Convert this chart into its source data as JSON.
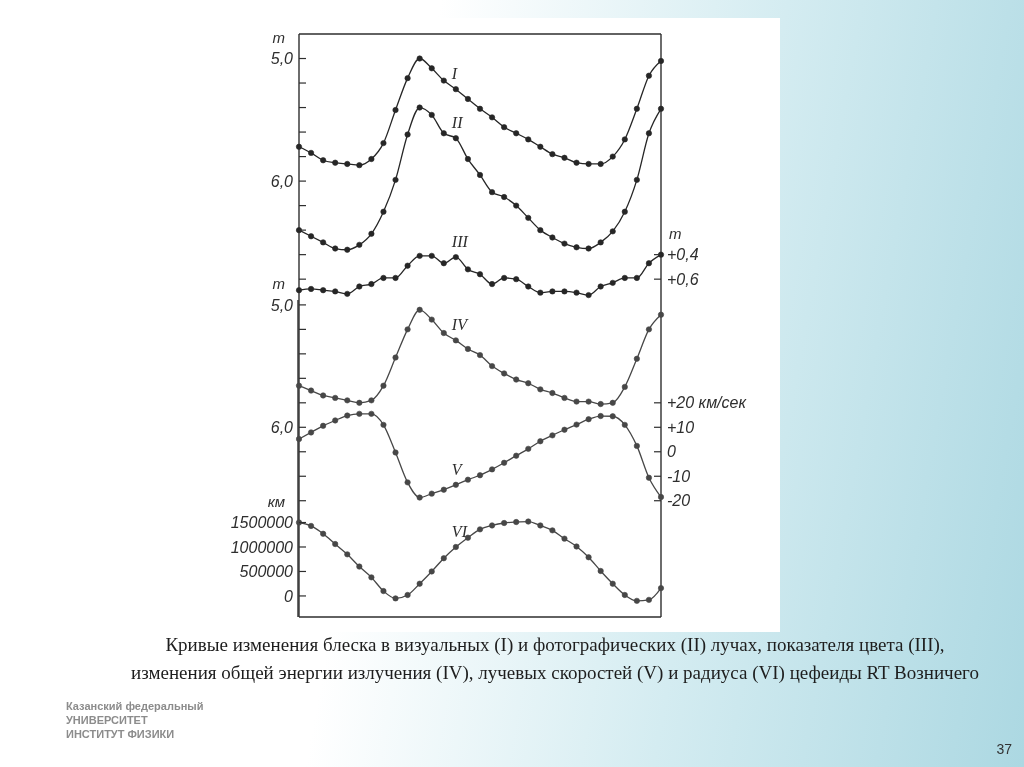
{
  "chart_data": [
    {
      "type": "line",
      "categories": [
        null,
        null,
        null,
        null,
        null,
        null,
        null,
        null,
        null,
        null,
        null,
        null,
        null,
        null,
        null,
        null,
        null,
        null,
        null,
        null,
        null,
        null,
        null,
        null,
        null,
        null,
        null,
        null,
        null,
        null,
        null
      ],
      "series": [
        {
          "name": "I",
          "color": "#262626",
          "values": [
            5.72,
            5.77,
            5.83,
            5.85,
            5.86,
            5.87,
            5.82,
            5.69,
            5.42,
            5.16,
            5.0,
            5.08,
            5.18,
            5.25,
            5.33,
            5.41,
            5.48,
            5.56,
            5.61,
            5.66,
            5.72,
            5.78,
            5.81,
            5.85,
            5.86,
            5.86,
            5.8,
            5.66,
            5.41,
            5.14,
            5.02
          ]
        },
        {
          "name": "II",
          "color": "#262626",
          "values": [
            6.4,
            6.45,
            6.5,
            6.55,
            6.56,
            6.52,
            6.43,
            6.25,
            5.99,
            5.62,
            5.4,
            5.46,
            5.61,
            5.65,
            5.82,
            5.95,
            6.09,
            6.13,
            6.2,
            6.3,
            6.4,
            6.46,
            6.51,
            6.54,
            6.55,
            6.5,
            6.41,
            6.25,
            5.99,
            5.61,
            5.41
          ]
        },
        {
          "name": "III",
          "color": "#262626",
          "axis": "y2",
          "values": [
            0.69,
            0.68,
            0.69,
            0.7,
            0.72,
            0.66,
            0.64,
            0.59,
            0.59,
            0.49,
            0.41,
            0.41,
            0.47,
            0.42,
            0.52,
            0.56,
            0.64,
            0.59,
            0.6,
            0.66,
            0.71,
            0.7,
            0.7,
            0.71,
            0.73,
            0.66,
            0.63,
            0.59,
            0.59,
            0.47,
            0.4
          ]
        }
      ],
      "ylim": [
        6.97,
        4.8
      ],
      "yticks": [
        {
          "value": 5,
          "label": "5,0"
        },
        {
          "value": 5.2,
          "label": null
        },
        {
          "value": 5.4,
          "label": null
        },
        {
          "value": 5.6,
          "label": null
        },
        {
          "value": 5.8,
          "label": null
        },
        {
          "value": 6,
          "label": "6,0"
        },
        {
          "value": 6.2,
          "label": null
        },
        {
          "value": 6.4,
          "label": null
        },
        {
          "value": 6.6,
          "label": null
        },
        {
          "value": 6.8,
          "label": null
        }
      ],
      "ylabel": "m",
      "y2lim": [
        0.77,
        -1.4
      ],
      "y2ticks": [
        {
          "value": 0.4,
          "label": "+0,4"
        },
        {
          "value": 0.6,
          "label": "+0,6"
        }
      ],
      "y2label": "m",
      "marker": "circle"
    },
    {
      "type": "line",
      "categories": [
        null,
        null,
        null,
        null,
        null,
        null,
        null,
        null,
        null,
        null,
        null,
        null,
        null,
        null,
        null,
        null,
        null,
        null,
        null,
        null,
        null,
        null,
        null,
        null,
        null,
        null,
        null,
        null,
        null,
        null,
        null
      ],
      "series": [
        {
          "name": "IV",
          "color": "#474747",
          "values": [
            5.66,
            5.7,
            5.74,
            5.76,
            5.78,
            5.8,
            5.78,
            5.66,
            5.43,
            5.2,
            5.04,
            5.12,
            5.23,
            5.29,
            5.36,
            5.41,
            5.5,
            5.56,
            5.61,
            5.64,
            5.69,
            5.72,
            5.76,
            5.79,
            5.79,
            5.81,
            5.8,
            5.67,
            5.44,
            5.2,
            5.08
          ]
        },
        {
          "name": "V",
          "color": "#474747",
          "axis": "y2",
          "values": [
            5.2,
            7.9,
            10.6,
            12.8,
            14.8,
            15.5,
            15.5,
            11.0,
            -0.3,
            -12.5,
            -18.7,
            -17.1,
            -15.5,
            -13.5,
            -11.4,
            -9.6,
            -7.2,
            -4.5,
            -1.6,
            1.2,
            4.3,
            6.7,
            9.0,
            11.1,
            13.3,
            14.6,
            14.5,
            11.0,
            2.4,
            -10.6,
            -18.5
          ]
        },
        {
          "name": "VI",
          "color": "#474747",
          "axis": "y3",
          "values": [
            1500000,
            1430000,
            1270000,
            1060000,
            850000,
            600000,
            380000,
            100000,
            -50000,
            20000,
            250000,
            500000,
            770000,
            1000000,
            1190000,
            1360000,
            1440000,
            1490000,
            1510000,
            1520000,
            1440000,
            1340000,
            1170000,
            1010000,
            790000,
            510000,
            250000,
            20000,
            -100000,
            -80000,
            160000
          ]
        }
      ],
      "ylim": [
        7.55,
        4.96
      ],
      "yticks": [
        {
          "value": 5,
          "label": "5,0"
        },
        {
          "value": 5.2,
          "label": null
        },
        {
          "value": 5.4,
          "label": null
        },
        {
          "value": 5.6,
          "label": null
        },
        {
          "value": 5.8,
          "label": null
        },
        {
          "value": 6,
          "label": "6,0"
        },
        {
          "value": 6.2,
          "label": null
        },
        {
          "value": 6.4,
          "label": null
        },
        {
          "value": 6.6,
          "label": null
        }
      ],
      "ylabel": "m",
      "y2lim": [
        -67.5,
        62
      ],
      "y2ticks": [
        {
          "value": 20,
          "label": "+20 км/сек"
        },
        {
          "value": 10,
          "label": "+10"
        },
        0,
        -10,
        -20
      ],
      "y3lim": [
        -430000,
        6045000
      ],
      "y3ticks": [
        0,
        500000,
        1000000,
        1500000
      ],
      "y3label": "км",
      "marker": "circle",
      "annotations": [
        "Кривые изменения блеска в визуальных (I) и фотографических (II) лучах, показателя цвета (III), изменения общей энергии излучения (IV), лучевых скоростей (V) и радиуса (VI) цефеиды RT Возничего",
        "Казанский федеральный",
        "УНИВЕРСИТЕТ",
        "ИНСТИТУТ ФИЗИКИ",
        "37"
      ]
    }
  ]
}
